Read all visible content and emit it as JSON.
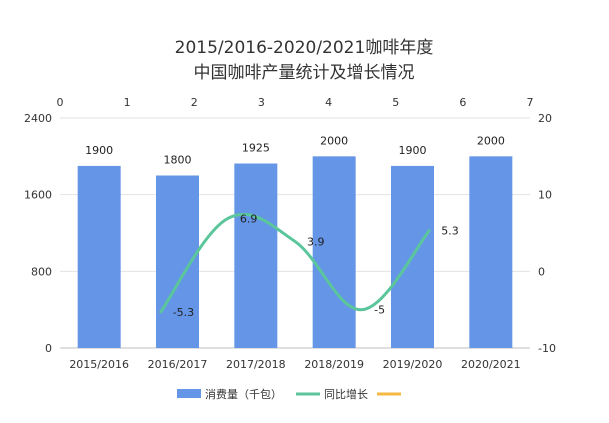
{
  "chart_data": {
    "type": "bar",
    "title": [
      "2015/2016-2020/2021咖啡年度",
      "中国咖啡产量统计及增长情况"
    ],
    "categories": [
      "2015/2016",
      "2016/2017",
      "2017/2018",
      "2018/2019",
      "2019/2020",
      "2020/2021"
    ],
    "series": [
      {
        "name": "消费量（千包）",
        "type": "bar",
        "axis": "left",
        "color": "#6495E6",
        "values": [
          1900,
          1800,
          1925,
          2000,
          1900,
          2000
        ],
        "labels": [
          "1900",
          "1800",
          "1925",
          "2000",
          "1900",
          "2000"
        ]
      },
      {
        "name": "同比增长",
        "type": "line",
        "axis": "right",
        "xaxis": "top",
        "color": "#5BC69B",
        "x": [
          1.5,
          2.5,
          3.5,
          4.5,
          5.5
        ],
        "values": [
          -5.3,
          6.9,
          3.9,
          -5,
          5.3
        ],
        "labels": [
          "-5.3",
          "6.9",
          "3.9",
          "-5",
          "5.3"
        ]
      },
      {
        "name": "",
        "type": "line",
        "legend_only": true,
        "color": "#F4B942"
      }
    ],
    "y_left": {
      "min": 0,
      "max": 2400,
      "ticks": [
        "0",
        "800",
        "1600",
        "2400"
      ]
    },
    "y_right": {
      "min": -10,
      "max": 20,
      "ticks": [
        "-10",
        "0",
        "10",
        "20"
      ]
    },
    "x_top": {
      "min": 0,
      "max": 7,
      "ticks": [
        "0",
        "1",
        "2",
        "3",
        "4",
        "5",
        "6",
        "7"
      ]
    },
    "grid": true,
    "legend": "bottom"
  }
}
